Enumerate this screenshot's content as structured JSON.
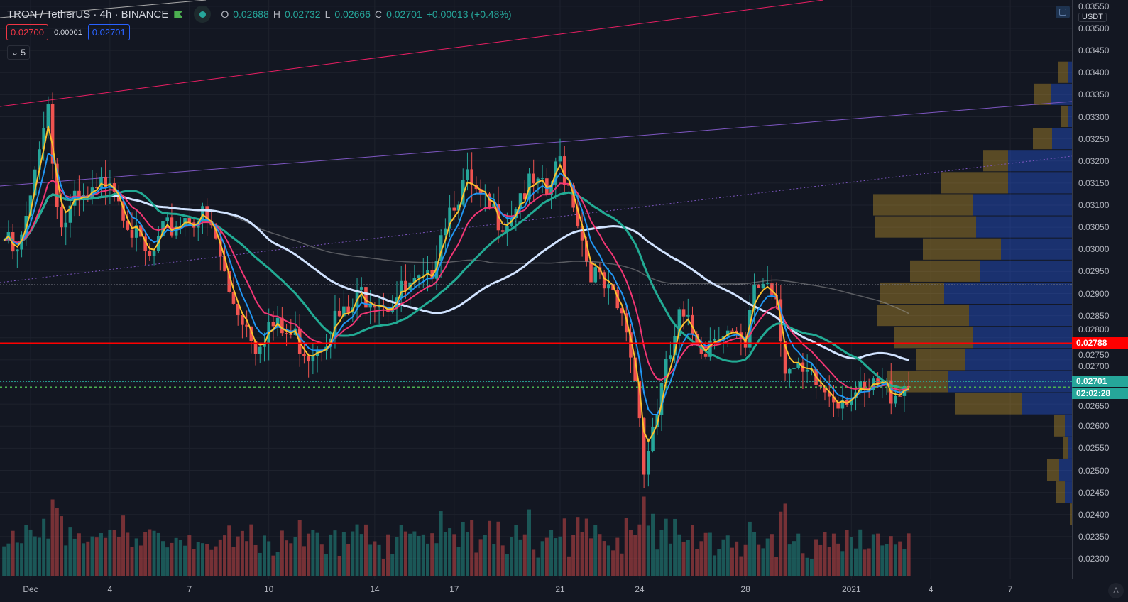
{
  "header": {
    "symbol": "TRON / TetherUS",
    "interval": "4h",
    "exchange": "BINANCE",
    "ohlc": {
      "o_label": "O",
      "o": "0.02688",
      "h_label": "H",
      "h": "0.02732",
      "l_label": "L",
      "l": "0.02666",
      "c_label": "C",
      "c": "0.02701",
      "change": "+0.00013 (+0.48%)"
    }
  },
  "trade": {
    "sell": "0.02700",
    "spread": "0.00001",
    "buy": "0.02701"
  },
  "indicators_toggle": "5",
  "axis": {
    "currency": "USDT",
    "auto": "A",
    "last_price": "0.02701",
    "countdown": "02:02:28",
    "line_price": "0.02788"
  },
  "colors": {
    "up": "#26a69a",
    "down": "#ef5350",
    "background": "#131722",
    "price_line": "#ff0000",
    "last": "#26a69a"
  },
  "chart_data": {
    "type": "candlestick",
    "symbol": "TRXUSDT",
    "interval": "4h",
    "ylim": [
      0.0228,
      0.0356
    ],
    "y_ticks": [
      "0.02300",
      "0.02350",
      "0.02400",
      "0.02450",
      "0.02500",
      "0.02550",
      "0.02600",
      "0.02650",
      "0.02700",
      "0.02750",
      "0.02800",
      "0.02850",
      "0.02900",
      "0.02950",
      "0.03000",
      "0.03050",
      "0.03100",
      "0.03150",
      "0.03200",
      "0.03250",
      "0.03300",
      "0.03350",
      "0.03400",
      "0.03450",
      "0.03500",
      "0.03550"
    ],
    "x_ticks": [
      {
        "label": "Dec",
        "date": "2020-12-01"
      },
      {
        "label": "4",
        "date": "2020-12-04"
      },
      {
        "label": "7",
        "date": "2020-12-07"
      },
      {
        "label": "10",
        "date": "2020-12-10"
      },
      {
        "label": "14",
        "date": "2020-12-14"
      },
      {
        "label": "17",
        "date": "2020-12-17"
      },
      {
        "label": "21",
        "date": "2020-12-21"
      },
      {
        "label": "24",
        "date": "2020-12-24"
      },
      {
        "label": "28",
        "date": "2020-12-28"
      },
      {
        "label": "2021",
        "date": "2021-01-01"
      },
      {
        "label": "4",
        "date": "2021-01-04"
      },
      {
        "label": "7",
        "date": "2021-01-07"
      }
    ],
    "price_path": {
      "x": [
        "2020-11-30 00:00",
        "2020-11-30 12:00",
        "2020-12-01 00:00",
        "2020-12-01 08:00",
        "2020-12-01 16:00",
        "2020-12-01 20:00",
        "2020-12-02 04:00",
        "2020-12-02 16:00",
        "2020-12-03 00:00",
        "2020-12-03 12:00",
        "2020-12-04 00:00",
        "2020-12-04 12:00",
        "2020-12-05 00:00",
        "2020-12-05 12:00",
        "2020-12-06 00:00",
        "2020-12-06 12:00",
        "2020-12-07 00:00",
        "2020-12-07 12:00",
        "2020-12-08 00:00",
        "2020-12-08 12:00",
        "2020-12-09 00:00",
        "2020-12-09 12:00",
        "2020-12-10 00:00",
        "2020-12-10 12:00",
        "2020-12-11 00:00",
        "2020-12-11 12:00",
        "2020-12-12 00:00",
        "2020-12-12 12:00",
        "2020-12-13 00:00",
        "2020-12-13 12:00",
        "2020-12-14 00:00",
        "2020-12-14 12:00",
        "2020-12-15 00:00",
        "2020-12-15 12:00",
        "2020-12-16 00:00",
        "2020-12-16 12:00",
        "2020-12-17 00:00",
        "2020-12-17 12:00",
        "2020-12-18 00:00",
        "2020-12-18 12:00",
        "2020-12-19 00:00",
        "2020-12-19 12:00",
        "2020-12-20 00:00",
        "2020-12-20 12:00",
        "2020-12-21 00:00",
        "2020-12-21 12:00",
        "2020-12-22 00:00",
        "2020-12-22 12:00",
        "2020-12-23 00:00",
        "2020-12-23 12:00",
        "2020-12-24 00:00",
        "2020-12-24 04:00",
        "2020-12-24 12:00",
        "2020-12-25 00:00",
        "2020-12-25 12:00",
        "2020-12-26 00:00",
        "2020-12-26 12:00",
        "2020-12-27 00:00",
        "2020-12-27 12:00",
        "2020-12-28 00:00",
        "2020-12-28 08:00",
        "2020-12-28 20:00",
        "2020-12-29 04:00",
        "2020-12-29 12:00",
        "2020-12-30 00:00",
        "2020-12-30 12:00",
        "2020-12-31 00:00",
        "2020-12-31 12:00",
        "2021-01-01 00:00",
        "2021-01-01 12:00",
        "2021-01-02 00:00",
        "2021-01-02 12:00",
        "2021-01-03 04:00"
      ],
      "close": [
        0.0302,
        0.0298,
        0.031,
        0.0325,
        0.0333,
        0.032,
        0.0305,
        0.031,
        0.031,
        0.0312,
        0.0318,
        0.031,
        0.0302,
        0.0297,
        0.0303,
        0.0306,
        0.0308,
        0.0307,
        0.0302,
        0.029,
        0.0285,
        0.0279,
        0.0283,
        0.0281,
        0.028,
        0.0277,
        0.028,
        0.0284,
        0.0285,
        0.029,
        0.029,
        0.0288,
        0.029,
        0.0291,
        0.0292,
        0.0305,
        0.0312,
        0.0315,
        0.031,
        0.0308,
        0.0307,
        0.0313,
        0.0314,
        0.0312,
        0.032,
        0.0312,
        0.0298,
        0.0292,
        0.0288,
        0.0282,
        0.0265,
        0.025,
        0.026,
        0.0272,
        0.0284,
        0.0281,
        0.0278,
        0.0283,
        0.028,
        0.0276,
        0.0292,
        0.0293,
        0.029,
        0.0274,
        0.0271,
        0.027,
        0.0268,
        0.0267,
        0.0268,
        0.0266,
        0.0269,
        0.0268,
        0.027
      ]
    },
    "horizontal_lines": [
      {
        "price": 0.02788,
        "color": "#ff0000",
        "style": "solid"
      },
      {
        "price": 0.0292,
        "color": "#787b86",
        "style": "dotted"
      },
      {
        "price": 0.02688,
        "color": "#4caf50",
        "style": "dotted"
      },
      {
        "price": 0.02701,
        "color": "#26a69a",
        "style": "dotted"
      }
    ],
    "volume_profile": {
      "prices": [
        0.034,
        0.0335,
        0.033,
        0.0325,
        0.032,
        0.0315,
        0.031,
        0.0305,
        0.03,
        0.0295,
        0.029,
        0.0285,
        0.028,
        0.0275,
        0.027,
        0.0265,
        0.026,
        0.0255,
        0.025,
        0.0245,
        0.024
      ],
      "up": [
        5,
        30,
        5,
        28,
        90,
        90,
        140,
        135,
        100,
        130,
        180,
        145,
        140,
        150,
        175,
        70,
        10,
        5,
        18,
        10,
        0
      ],
      "down": [
        15,
        23,
        10,
        27,
        35,
        95,
        140,
        143,
        110,
        98,
        90,
        130,
        110,
        70,
        85,
        95,
        15,
        7,
        17,
        12,
        2
      ]
    }
  }
}
